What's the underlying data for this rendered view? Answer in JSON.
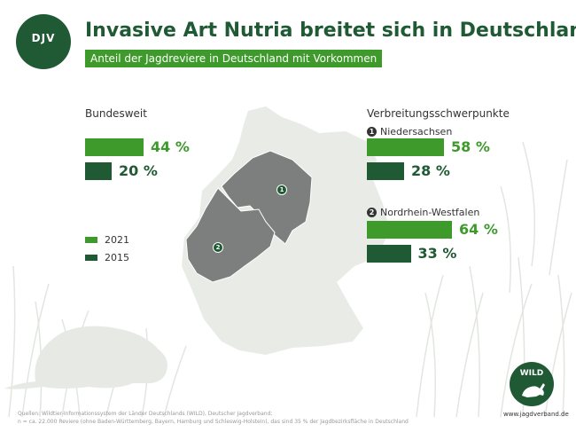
{
  "header": {
    "logo_text": "DJV",
    "title": "Invasive Art Nutria breitet sich in Deutschland aus",
    "subtitle": "Anteil der Jagdreviere in Deutschland mit Vorkommen"
  },
  "colors": {
    "dark_green": "#1f5a35",
    "light_green": "#3e9a2b",
    "map_germany": "#e8ebe6",
    "map_region": "#7c7f7d"
  },
  "chart_data": {
    "type": "bar",
    "orientation": "horizontal",
    "series": [
      {
        "name": "2021",
        "color": "#3e9a2b"
      },
      {
        "name": "2015",
        "color": "#1f5a35"
      }
    ],
    "groups": [
      {
        "key": "bundesweit",
        "label": "Bundesweit",
        "badge": "",
        "values": [
          44,
          20
        ],
        "labels": [
          "44 %",
          "20 %"
        ]
      },
      {
        "key": "niedersachsen",
        "label": "Niedersachsen",
        "badge": "1",
        "values": [
          58,
          28
        ],
        "labels": [
          "58 %",
          "28 %"
        ]
      },
      {
        "key": "nrw",
        "label": "Nordrhein-Westfalen",
        "badge": "2",
        "values": [
          64,
          33
        ],
        "labels": [
          "64 %",
          "33 %"
        ]
      }
    ],
    "section_heading": "Verbreitungsschwerpunkte",
    "legend": [
      "2021",
      "2015"
    ]
  },
  "map": {
    "markers": [
      "1",
      "2"
    ]
  },
  "footer": {
    "wild_logo_text": "WILD",
    "url": "www.jagdverband.de",
    "source_line1": "Quellen: Wildtier-Informationssystem der Länder Deutschlands (WILD), Deutscher Jagdverband;",
    "source_line2": "n = ca. 22.000 Reviere (ohne Baden-Württemberg, Bayern, Hamburg und Schleswig-Holstein), das sind 35 % der Jagdbezirksfläche in Deutschland"
  }
}
